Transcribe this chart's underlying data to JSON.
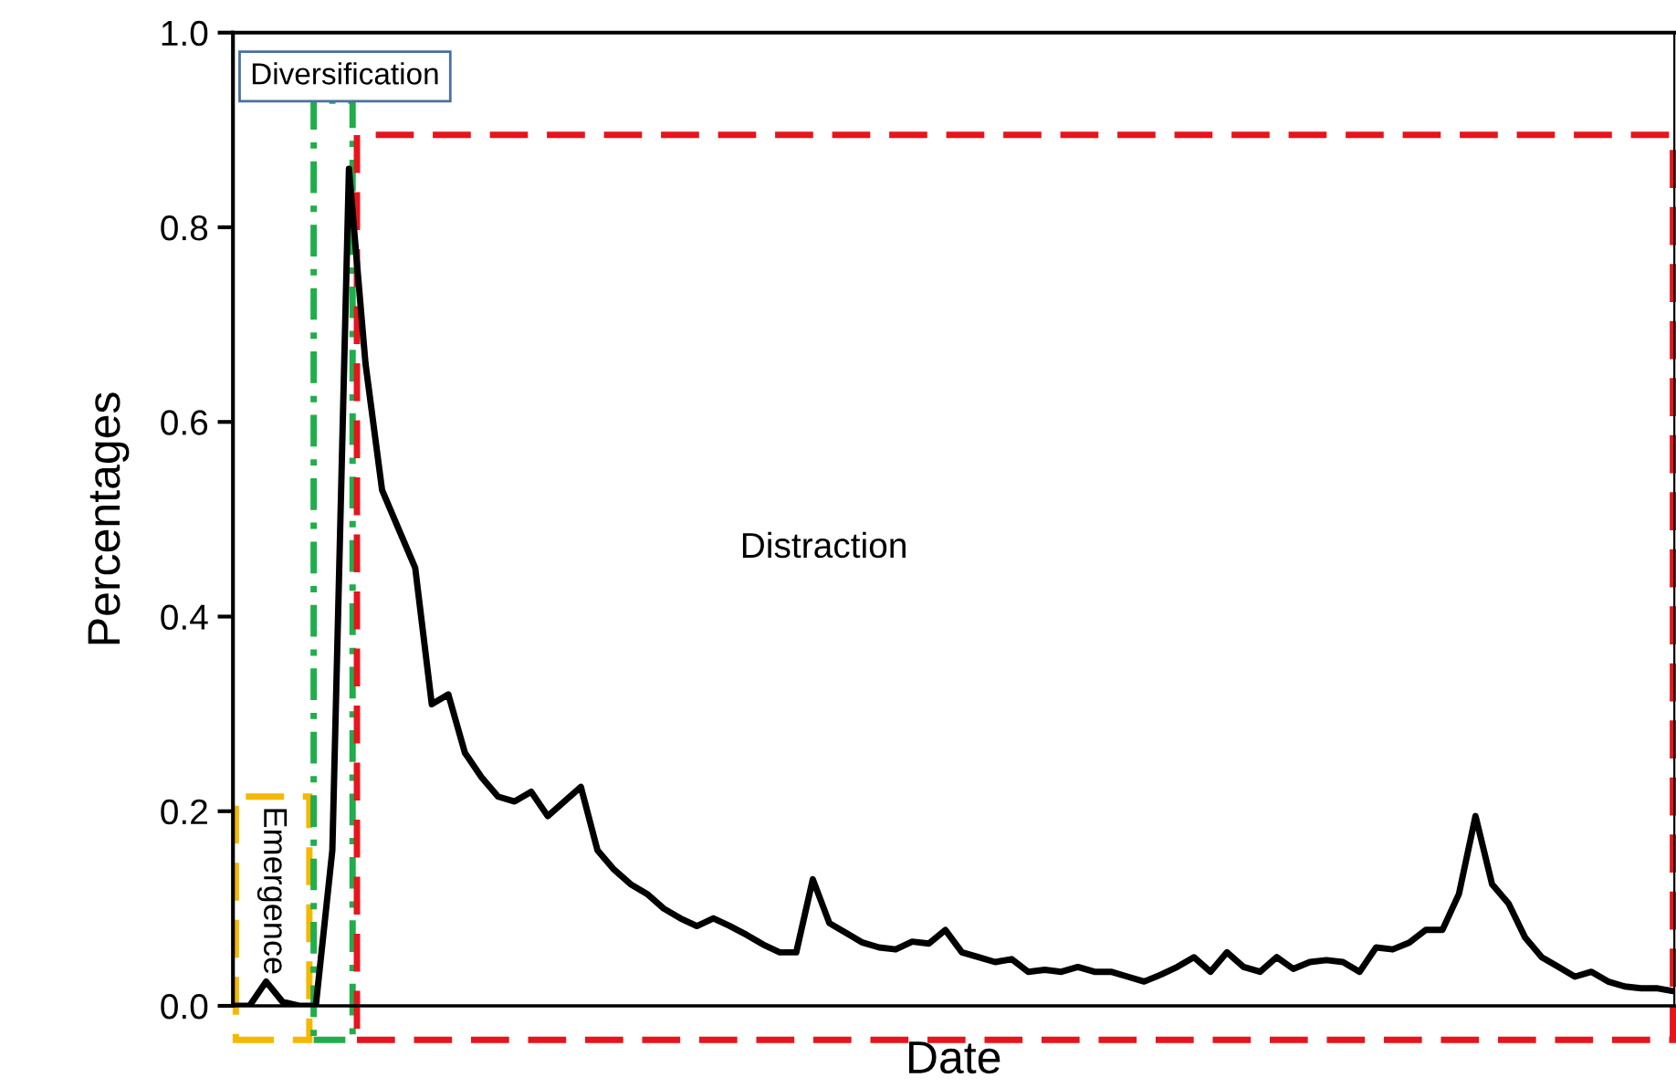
{
  "chart_data": {
    "type": "line",
    "xlabel": "Date",
    "ylabel": "Percentages",
    "categories": [
      null,
      null,
      null,
      null,
      null,
      null,
      null,
      null,
      null,
      null,
      null,
      null,
      null,
      null,
      null,
      null,
      null,
      null,
      null,
      null,
      null,
      null,
      null,
      null,
      null,
      null,
      null,
      null,
      null,
      null,
      null,
      null,
      null,
      null,
      null,
      null,
      null,
      null,
      null,
      null,
      null,
      null,
      null,
      null,
      null,
      null,
      null,
      null,
      null,
      null,
      null,
      null,
      null,
      null,
      null,
      null,
      null,
      null,
      null,
      null,
      null,
      null,
      null,
      null,
      null,
      null,
      null,
      null,
      null,
      null,
      null,
      null,
      null,
      null,
      null,
      null,
      null,
      null,
      null,
      null,
      null,
      null,
      null,
      null,
      null,
      null,
      null,
      null
    ],
    "series": [
      {
        "color": "#000000",
        "values": [
          0,
          0,
          0.025,
          0.004,
          0,
          0,
          0.16,
          0.86,
          0.66,
          0.53,
          0.49,
          0.45,
          0.31,
          0.32,
          0.26,
          0.235,
          0.215,
          0.21,
          0.22,
          0.195,
          0.21,
          0.225,
          0.16,
          0.14,
          0.125,
          0.115,
          0.1,
          0.09,
          0.082,
          0.09,
          0.082,
          0.073,
          0.063,
          0.055,
          0.055,
          0.13,
          0.085,
          0.075,
          0.065,
          0.06,
          0.058,
          0.066,
          0.064,
          0.078,
          0.055,
          0.05,
          0.045,
          0.048,
          0.035,
          0.037,
          0.035,
          0.04,
          0.035,
          0.035,
          0.03,
          0.025,
          0.032,
          0.04,
          0.05,
          0.035,
          0.055,
          0.04,
          0.035,
          0.05,
          0.038,
          0.045,
          0.047,
          0.045,
          0.035,
          0.06,
          0.058,
          0.065,
          0.078,
          0.078,
          0.115,
          0.195,
          0.125,
          0.105,
          0.07,
          0.05,
          0.04,
          0.03,
          0.035,
          0.025,
          0.02,
          0.018,
          0.018,
          0.015
        ]
      }
    ],
    "ylim": [
      0,
      1.0
    ],
    "yticks": [
      {
        "value": 0,
        "label": "0.0"
      },
      {
        "value": 0.2,
        "label": "0.2"
      },
      {
        "value": 0.4,
        "label": "0.4"
      },
      {
        "value": 0.6,
        "label": "0.6"
      },
      {
        "value": 0.8,
        "label": "0.8"
      },
      {
        "value": 1.0,
        "label": "1.0"
      }
    ],
    "annotations": [
      "Emergence",
      "Diversification",
      "Distraction"
    ],
    "grid": false,
    "legend": false
  }
}
